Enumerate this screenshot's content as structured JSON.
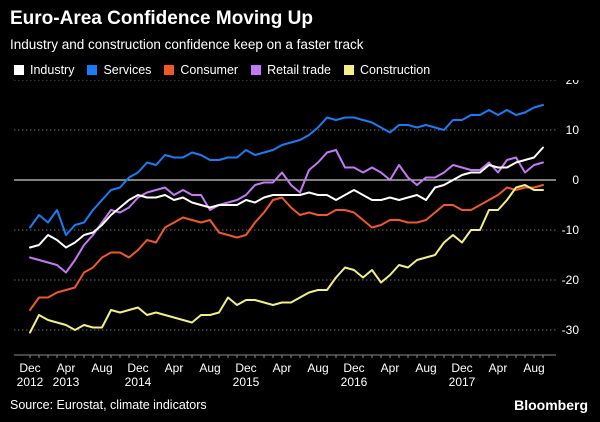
{
  "header": {
    "title": "Euro-Area Confidence Moving Up",
    "subtitle": "Industry and construction confidence keep on a faster track"
  },
  "footer": {
    "source": "Source: Eurostat, climate indicators",
    "brand": "Bloomberg"
  },
  "chart_data": {
    "type": "line",
    "title": "Euro-Area Confidence Moving Up",
    "subtitle": "Industry and construction confidence keep on a faster track",
    "xlabel": "",
    "ylabel": "",
    "ylim": [
      -35,
      20
    ],
    "yticks": [
      20,
      10,
      0,
      -10,
      -20,
      -30
    ],
    "grid": "horizontal dotted",
    "legend_position": "top",
    "x_start": "Dec 2012",
    "x_end": "Sep 2017",
    "x_ticks": [
      {
        "month": "Dec",
        "year": "2012",
        "index": 0
      },
      {
        "month": "Apr",
        "year": "2013",
        "index": 4
      },
      {
        "month": "Aug",
        "year": "",
        "index": 8
      },
      {
        "month": "Dec",
        "year": "2014",
        "index": 12
      },
      {
        "month": "Apr",
        "year": "",
        "index": 16
      },
      {
        "month": "Aug",
        "year": "",
        "index": 20
      },
      {
        "month": "Dec",
        "year": "2015",
        "index": 24
      },
      {
        "month": "Apr",
        "year": "",
        "index": 28
      },
      {
        "month": "Aug",
        "year": "",
        "index": 32
      },
      {
        "month": "Dec",
        "year": "2016",
        "index": 36
      },
      {
        "month": "Apr",
        "year": "",
        "index": 40
      },
      {
        "month": "Aug",
        "year": "",
        "index": 44
      },
      {
        "month": "Dec",
        "year": "2017",
        "index": 48
      },
      {
        "month": "Apr",
        "year": "",
        "index": 52
      },
      {
        "month": "Aug",
        "year": "",
        "index": 56
      }
    ],
    "series": [
      {
        "name": "Industry",
        "color": "#ffffff",
        "values": [
          -13.5,
          -13,
          -11,
          -12,
          -13.5,
          -12.5,
          -11,
          -10.5,
          -9,
          -7,
          -5.5,
          -4,
          -3,
          -3.5,
          -3.5,
          -3,
          -4,
          -3.5,
          -4.5,
          -5,
          -5.5,
          -5,
          -5,
          -5,
          -4,
          -4.5,
          -3.5,
          -3,
          -3,
          -3,
          -3,
          -2.5,
          -3,
          -3,
          -4,
          -3,
          -2,
          -3,
          -4,
          -4,
          -3.5,
          -4,
          -3.5,
          -3,
          -4,
          -1.5,
          -1,
          0,
          1,
          1.5,
          1.5,
          3,
          2.5,
          2.5,
          3.5,
          4,
          4.5,
          6.5
        ]
      },
      {
        "name": "Services",
        "color": "#1a7cf5",
        "values": [
          -9.5,
          -7,
          -8.5,
          -6,
          -11,
          -9,
          -8.5,
          -6,
          -4,
          -2,
          -1.5,
          0.5,
          1.5,
          3.5,
          3,
          5,
          4.5,
          4.5,
          5.5,
          5,
          4,
          4,
          4.5,
          4.5,
          6,
          5,
          5.5,
          6,
          7,
          7.5,
          8,
          9,
          10.5,
          12.5,
          12,
          12.5,
          12.5,
          12,
          11.5,
          10.5,
          9.5,
          11,
          11,
          10.5,
          11,
          10.5,
          10,
          12,
          12,
          13,
          13,
          14,
          13,
          14,
          13,
          13.5,
          14.5,
          15
        ]
      },
      {
        "name": "Consumer",
        "color": "#f0582a",
        "values": [
          -26,
          -23.5,
          -23.5,
          -22.5,
          -22,
          -21.5,
          -18.5,
          -17.5,
          -15.5,
          -14.5,
          -14.5,
          -15.5,
          -14,
          -12,
          -12.5,
          -9.5,
          -8.5,
          -7.5,
          -8,
          -8.5,
          -8,
          -10.5,
          -11,
          -11.5,
          -11,
          -8.5,
          -6.5,
          -4,
          -3.5,
          -5.5,
          -7,
          -6.5,
          -7,
          -7,
          -6,
          -6,
          -6.5,
          -8,
          -9.5,
          -9,
          -8,
          -8,
          -8.5,
          -8.5,
          -8,
          -6.5,
          -5,
          -5,
          -6,
          -6,
          -5,
          -4,
          -3,
          -1.5,
          -2,
          -1.5,
          -1.5,
          -1
        ]
      },
      {
        "name": "Retail trade",
        "color": "#c478f4",
        "values": [
          -15.5,
          -16,
          -16.5,
          -17,
          -18.5,
          -16,
          -13,
          -11,
          -8.5,
          -6,
          -6.5,
          -5.5,
          -3.5,
          -2.5,
          -2,
          -1.5,
          -3,
          -2,
          -3,
          -3,
          -6,
          -5,
          -4.5,
          -4,
          -3,
          -1,
          -0.5,
          -0.5,
          1.5,
          -1,
          -2.5,
          2,
          3.5,
          5.5,
          6,
          2.5,
          2.5,
          1.5,
          2.5,
          1.5,
          0,
          3,
          0.5,
          -1,
          0.5,
          0.5,
          1.5,
          3,
          2.5,
          2,
          2,
          3.5,
          1.5,
          4,
          4.5,
          1.5,
          3,
          3.5
        ]
      },
      {
        "name": "Construction",
        "color": "#f3ee86",
        "values": [
          -30.5,
          -27,
          -28,
          -28.5,
          -29,
          -30,
          -29,
          -29.5,
          -29.5,
          -26,
          -26.5,
          -26,
          -25.5,
          -27,
          -26.5,
          -27,
          -27.5,
          -28,
          -28.5,
          -27,
          -27,
          -26.5,
          -23.5,
          -25,
          -24,
          -24,
          -24.5,
          -25,
          -24.5,
          -24.5,
          -23.5,
          -22.5,
          -22,
          -22,
          -19.5,
          -17.5,
          -18,
          -19.5,
          -18,
          -20.5,
          -19,
          -17,
          -17.5,
          -16,
          -15.5,
          -15,
          -12.5,
          -11,
          -12.5,
          -10,
          -10,
          -6,
          -6,
          -4,
          -1.5,
          -1,
          -2,
          -2
        ]
      }
    ]
  }
}
